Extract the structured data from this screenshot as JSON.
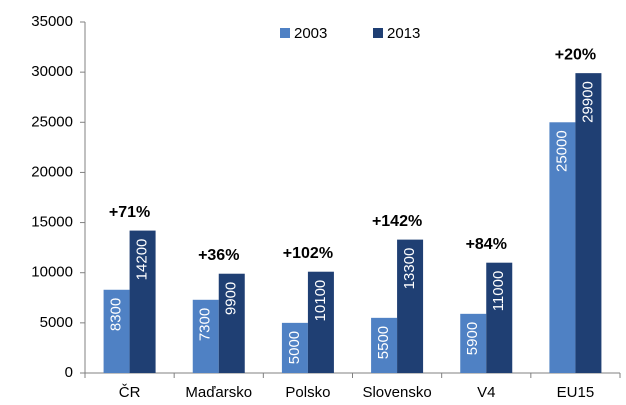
{
  "chart_data": {
    "type": "bar",
    "categories": [
      "ČR",
      "Maďarsko",
      "Polsko",
      "Slovensko",
      "V4",
      "EU15"
    ],
    "series": [
      {
        "name": "2003",
        "color": "#4f81c4",
        "values": [
          8300,
          7300,
          5000,
          5500,
          5900,
          25000
        ]
      },
      {
        "name": "2013",
        "color": "#1f3f73",
        "values": [
          14200,
          9900,
          10100,
          13300,
          11000,
          29900
        ]
      }
    ],
    "annotations": [
      "+71%",
      "+36%",
      "+102%",
      "+142%",
      "+84%",
      "+20%"
    ],
    "ylim": [
      0,
      35000
    ],
    "yticks": [
      0,
      5000,
      10000,
      15000,
      20000,
      25000,
      30000,
      35000
    ],
    "grid": false,
    "legend": "top"
  }
}
